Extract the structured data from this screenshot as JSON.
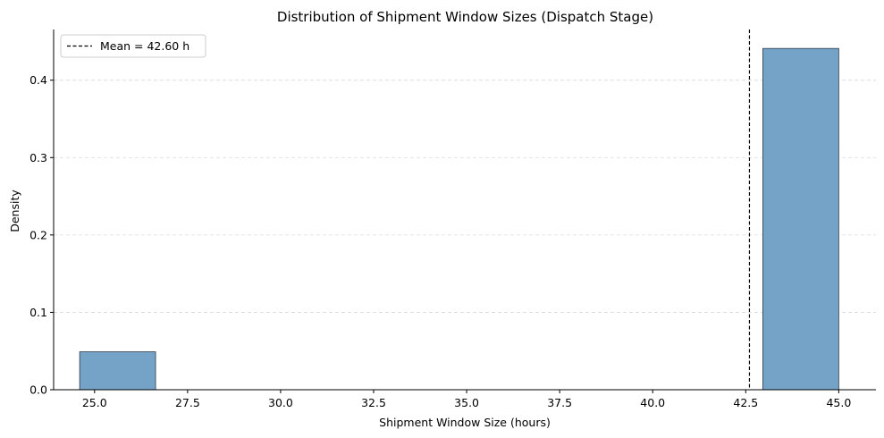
{
  "chart_data": {
    "type": "histogram",
    "title": "Distribution of Shipment Window Sizes (Dispatch Stage)",
    "xlabel": "Shipment Window Size (hours)",
    "ylabel": "Density",
    "xlim": [
      23.9,
      46.0
    ],
    "ylim": [
      0,
      0.4655
    ],
    "x_ticks": [
      25.0,
      27.5,
      30.0,
      32.5,
      35.0,
      37.5,
      40.0,
      42.5,
      45.0
    ],
    "y_ticks": [
      0.0,
      0.1,
      0.2,
      0.3,
      0.4
    ],
    "x_tick_labels": [
      "25.0",
      "27.5",
      "30.0",
      "32.5",
      "35.0",
      "37.5",
      "40.0",
      "42.5",
      "45.0"
    ],
    "y_tick_labels": [
      "0.0",
      "0.1",
      "0.2",
      "0.3",
      "0.4"
    ],
    "bins": [
      {
        "x0": 24.6,
        "x1": 26.64,
        "density": 0.049
      },
      {
        "x0": 26.64,
        "x1": 28.68,
        "density": 0
      },
      {
        "x0": 28.68,
        "x1": 30.72,
        "density": 0
      },
      {
        "x0": 30.72,
        "x1": 32.76,
        "density": 0
      },
      {
        "x0": 32.76,
        "x1": 34.8,
        "density": 0
      },
      {
        "x0": 34.8,
        "x1": 36.84,
        "density": 0
      },
      {
        "x0": 36.84,
        "x1": 38.88,
        "density": 0
      },
      {
        "x0": 38.88,
        "x1": 40.92,
        "density": 0
      },
      {
        "x0": 40.92,
        "x1": 42.96,
        "density": 0
      },
      {
        "x0": 42.96,
        "x1": 45.0,
        "density": 0.441
      }
    ],
    "mean": 42.6,
    "mean_label": "Mean = 42.60 h",
    "legend_position": "upper-left",
    "grid": "y-dashed",
    "bar_color": "#74a3c7",
    "bar_edge_color": "#2b3a4a",
    "mean_line_color": "#000000"
  }
}
